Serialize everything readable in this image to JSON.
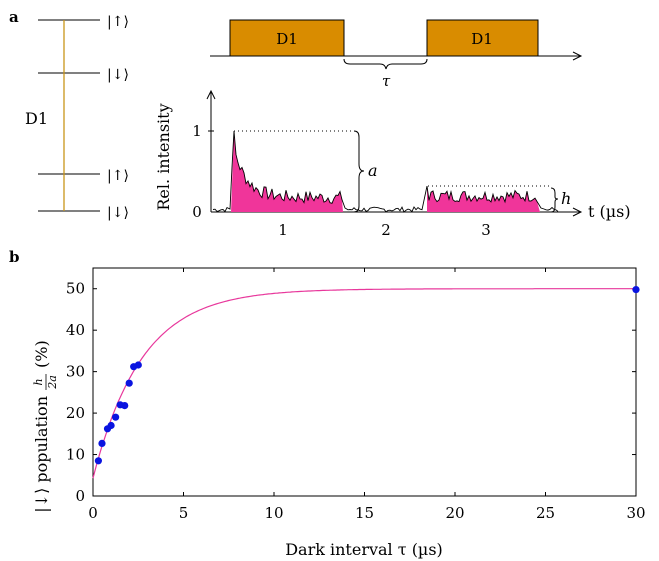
{
  "panel_a": {
    "label": "a",
    "energy_levels": {
      "levels": [
        "|↑⟩",
        "|↓⟩",
        "|↑⟩",
        "|↓⟩"
      ],
      "transition_label": "D1",
      "transition_color": "#c9961a"
    },
    "pulse_sequence": {
      "pulses": [
        "D1",
        "D1"
      ],
      "gap_label": "τ",
      "pulse_color": "#d98c00"
    },
    "trace": {
      "ylabel": "Rel. intensity",
      "xlabel": "t (µs)",
      "y_ticks": [
        "0",
        "1"
      ],
      "segments": [
        "1",
        "2",
        "3"
      ],
      "brace_a": "a",
      "brace_h": "h",
      "fill_color": "#f0359a"
    }
  },
  "panel_b": {
    "label": "b",
    "chart_data": {
      "type": "scatter",
      "xlabel": "Dark interval τ (µs)",
      "ylabel_main": "|↓⟩ population",
      "ylabel_frac_num": "h",
      "ylabel_frac_den": "2a",
      "ylabel_unit": "(%)",
      "xlim": [
        0,
        30
      ],
      "ylim": [
        0,
        55
      ],
      "x_ticks": [
        0,
        5,
        10,
        15,
        20,
        25,
        30
      ],
      "y_ticks": [
        0,
        10,
        20,
        30,
        40,
        50
      ],
      "points": [
        {
          "x": 0.3,
          "y": 8.5
        },
        {
          "x": 0.5,
          "y": 12.7
        },
        {
          "x": 0.8,
          "y": 16.2
        },
        {
          "x": 1.0,
          "y": 17.0
        },
        {
          "x": 1.25,
          "y": 19.0
        },
        {
          "x": 1.5,
          "y": 22.0
        },
        {
          "x": 1.75,
          "y": 21.8
        },
        {
          "x": 2.0,
          "y": 27.2
        },
        {
          "x": 2.25,
          "y": 31.2
        },
        {
          "x": 2.5,
          "y": 31.6
        },
        {
          "x": 30.0,
          "y": 49.8
        }
      ],
      "fit": {
        "function": "A*(1-exp(-x/tau))+c",
        "A": 45.7,
        "tau": 2.7,
        "c": 4.3
      },
      "point_color": "#0a14e0",
      "fit_color": "#e8389c"
    }
  }
}
